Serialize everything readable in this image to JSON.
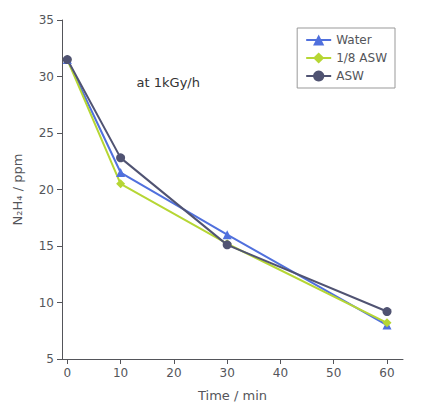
{
  "chart_data": {
    "type": "line",
    "xlabel": "Time / min",
    "ylabel": "N₂H₄ / ppm",
    "x": [
      0,
      10,
      30,
      60
    ],
    "series": [
      {
        "name": "Water",
        "values": [
          31.5,
          21.5,
          16.0,
          8.0
        ],
        "marker": "triangle"
      },
      {
        "name": "1/8 ASW",
        "values": [
          31.5,
          20.5,
          15.2,
          8.2
        ],
        "marker": "diamond"
      },
      {
        "name": "ASW",
        "values": [
          31.5,
          22.8,
          15.1,
          9.2
        ],
        "marker": "circle"
      }
    ],
    "xlim": [
      -1,
      63
    ],
    "ylim": [
      5,
      35
    ],
    "xticks": [
      0,
      10,
      20,
      30,
      40,
      50,
      60
    ],
    "yticks": [
      5,
      10,
      15,
      20,
      25,
      30,
      35
    ],
    "annotations": [
      {
        "text": "at 1kGy/h",
        "x": 13,
        "y": 29.5
      }
    ],
    "legend": "upper right",
    "grid": false
  }
}
